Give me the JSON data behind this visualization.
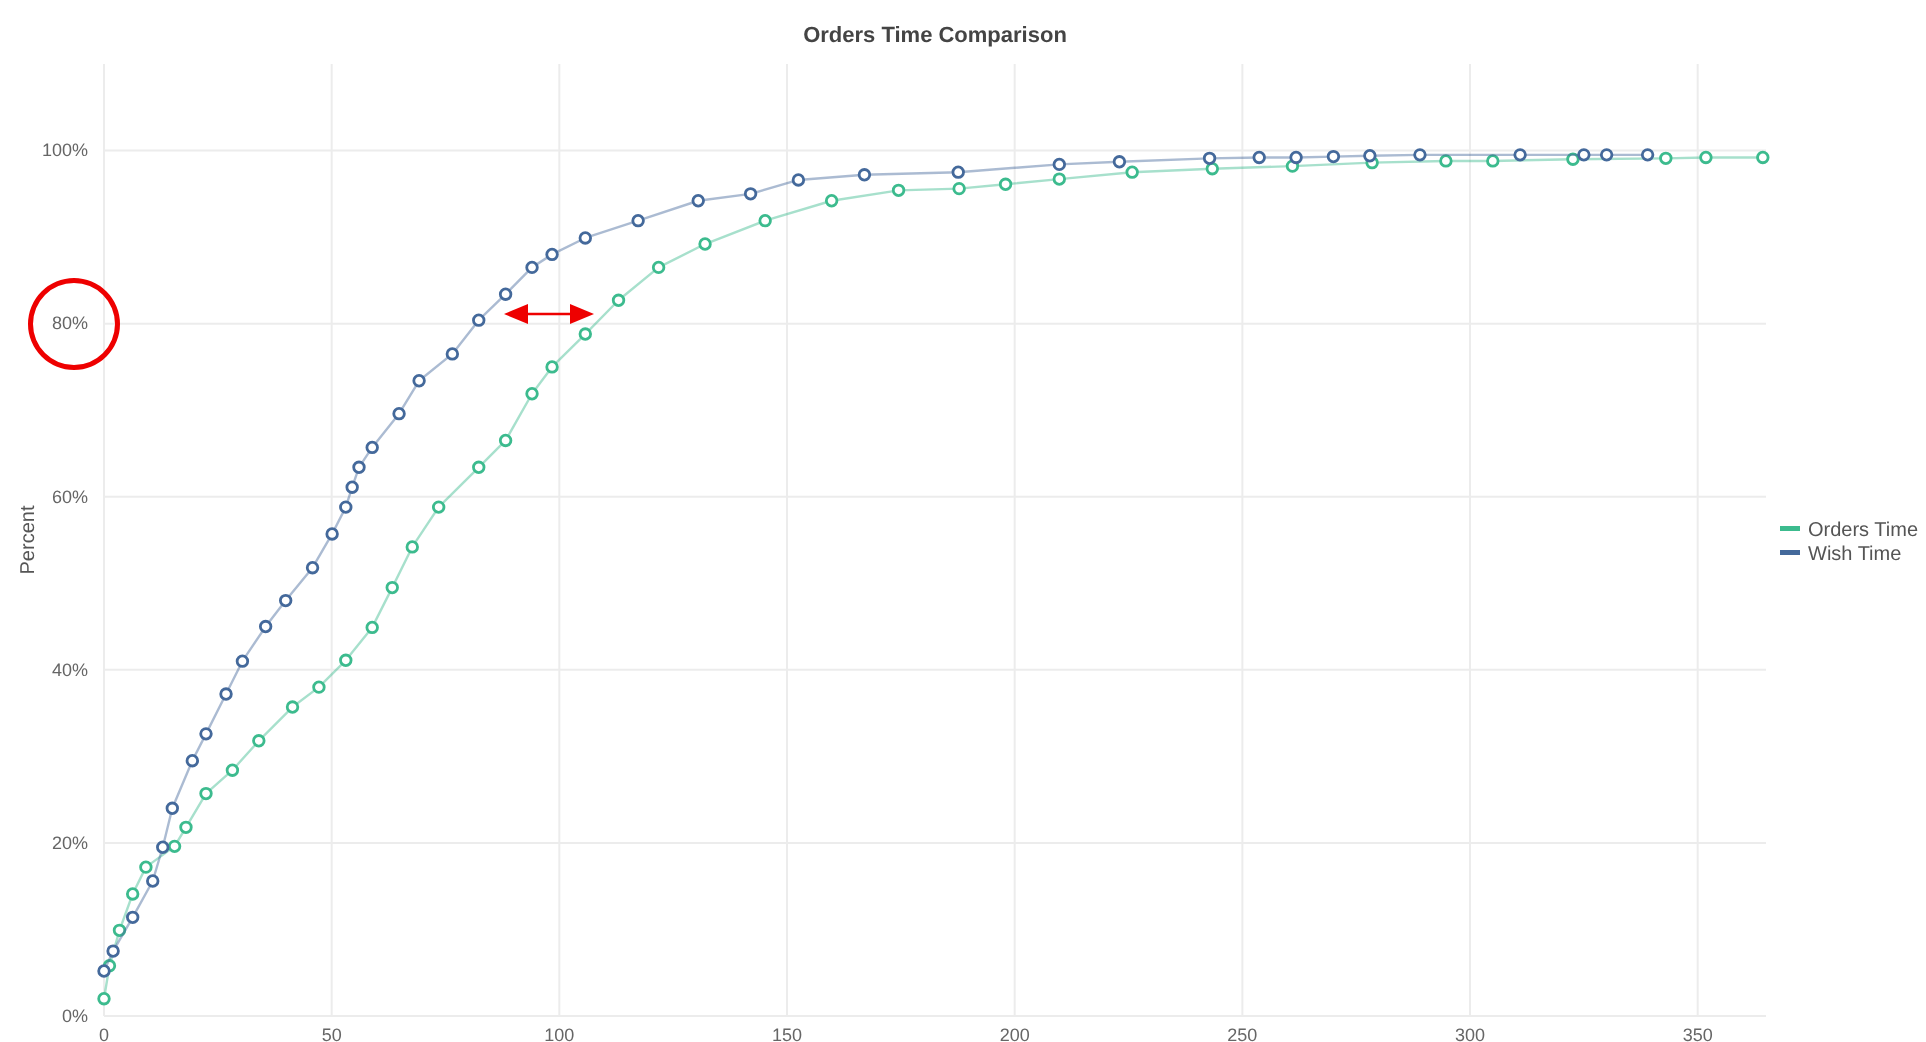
{
  "chart_data": {
    "type": "line",
    "title": "Orders Time Comparison",
    "ylabel": "Percent",
    "marker": "circle",
    "grid": true,
    "legend": "right",
    "xlim": [
      0,
      365
    ],
    "xticks": [
      0,
      50,
      100,
      150,
      200,
      250,
      300,
      350
    ],
    "ylim": [
      0,
      1.1
    ],
    "yticks": [
      {
        "value": 0,
        "label": "0%"
      },
      {
        "value": 0.2,
        "label": "20%"
      },
      {
        "value": 0.4,
        "label": "40%"
      },
      {
        "value": 0.6,
        "label": "60%"
      },
      {
        "value": 0.8,
        "label": "80%"
      },
      {
        "value": 1,
        "label": "100%"
      }
    ],
    "series": [
      {
        "name": "Orders Time",
        "color": "#3cbb8e",
        "x": [
          0,
          1.2,
          3.4,
          6.3,
          9.2,
          15.5,
          18,
          22.4,
          28.2,
          34,
          41.4,
          47.2,
          53.1,
          58.9,
          63.3,
          67.7,
          73.5,
          82.3,
          88.2,
          94,
          98.4,
          105.7,
          113,
          121.8,
          132,
          145.2,
          159.8,
          174.5,
          187.8,
          198,
          209.8,
          225.8,
          243.4,
          261,
          278.5,
          294.7,
          305,
          322.6,
          343,
          351.8,
          364.3
        ],
        "values": [
          0.02,
          0.058,
          0.099,
          0.141,
          0.172,
          0.196,
          0.218,
          0.257,
          0.284,
          0.318,
          0.357,
          0.38,
          0.411,
          0.449,
          0.495,
          0.542,
          0.588,
          0.634,
          0.665,
          0.719,
          0.75,
          0.788,
          0.827,
          0.865,
          0.892,
          0.919,
          0.942,
          0.954,
          0.956,
          0.961,
          0.967,
          0.975,
          0.979,
          0.982,
          0.986,
          0.988,
          0.988,
          0.99,
          0.991,
          0.992,
          0.992
        ]
      },
      {
        "name": "Wish Time",
        "color": "#44699b",
        "x": [
          0,
          2,
          6.3,
          10.7,
          12.9,
          15,
          19.4,
          22.4,
          26.8,
          30.4,
          35.5,
          39.9,
          45.8,
          50.1,
          53.1,
          54.5,
          56,
          58.9,
          64.8,
          69.2,
          76.5,
          82.3,
          88.2,
          94,
          98.4,
          105.7,
          117.3,
          130.5,
          142,
          152.5,
          167,
          187.6,
          209.8,
          223,
          242.8,
          253.7,
          261.8,
          270,
          278,
          289,
          311,
          325,
          330,
          339
        ],
        "values": [
          0.052,
          0.075,
          0.114,
          0.156,
          0.195,
          0.24,
          0.295,
          0.326,
          0.372,
          0.41,
          0.45,
          0.48,
          0.518,
          0.557,
          0.588,
          0.611,
          0.634,
          0.657,
          0.696,
          0.734,
          0.765,
          0.804,
          0.834,
          0.865,
          0.88,
          0.899,
          0.919,
          0.942,
          0.95,
          0.966,
          0.972,
          0.975,
          0.984,
          0.987,
          0.991,
          0.992,
          0.992,
          0.993,
          0.994,
          0.995,
          0.995,
          0.995,
          0.995,
          0.995
        ]
      }
    ]
  }
}
